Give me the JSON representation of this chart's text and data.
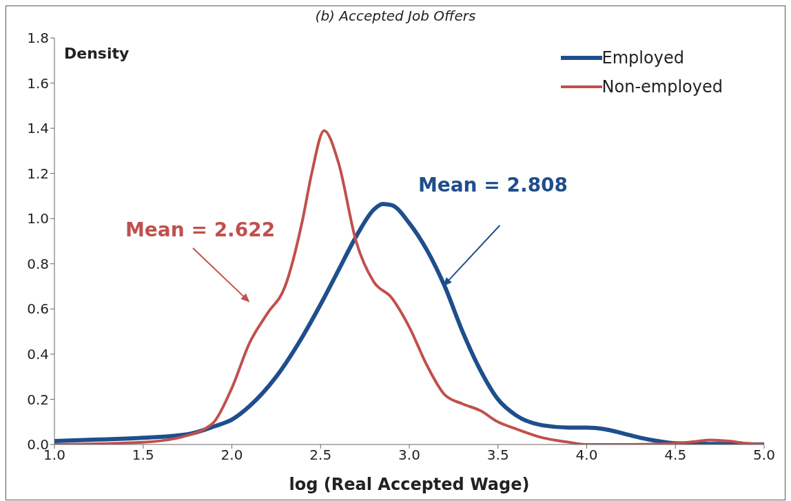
{
  "chart_data": {
    "type": "line",
    "title": "(b) Accepted Job Offers",
    "xlabel": "log (Real Accepted Wage)",
    "ylabel": "Density",
    "xlim": [
      1,
      5
    ],
    "xticks": [
      {
        "value": 1,
        "label": "1.0"
      },
      {
        "value": 1.5,
        "label": "1.5"
      },
      {
        "value": 2,
        "label": "2.0"
      },
      {
        "value": 2.5,
        "label": "2.5"
      },
      {
        "value": 3,
        "label": "3.0"
      },
      {
        "value": 3.5,
        "label": "3.5"
      },
      {
        "value": 4,
        "label": "4.0"
      },
      {
        "value": 4.5,
        "label": "4.5"
      },
      {
        "value": 5,
        "label": "5.0"
      }
    ],
    "ylim": [
      0,
      1.8
    ],
    "yticks": [
      {
        "value": 0,
        "label": "0.0"
      },
      {
        "value": 0.2,
        "label": "0.2"
      },
      {
        "value": 0.4,
        "label": "0.4"
      },
      {
        "value": 0.6,
        "label": "0.6"
      },
      {
        "value": 0.8,
        "label": "0.8"
      },
      {
        "value": 1,
        "label": "1.0"
      },
      {
        "value": 1.2,
        "label": "1.2"
      },
      {
        "value": 1.4,
        "label": "1.4"
      },
      {
        "value": 1.6,
        "label": "1.6"
      },
      {
        "value": 1.8,
        "label": "1.8"
      }
    ],
    "grid": false,
    "legend": "top right",
    "marker": "none",
    "line_style": "solid",
    "series": [
      {
        "name": "Employed",
        "color": "#1f4e8c",
        "x": [
          1,
          1.25,
          1.5,
          1.75,
          1.9,
          2,
          2.1,
          2.25,
          2.4,
          2.5,
          2.6,
          2.7,
          2.8,
          2.85,
          2.9,
          3,
          3.1,
          3.2,
          3.3,
          3.4,
          3.5,
          3.6,
          3.75,
          3.9,
          4,
          4.1,
          4.2,
          4.3,
          4.4,
          4.5,
          4.75,
          5
        ],
        "values": [
          0.015,
          0.022,
          0.03,
          0.045,
          0.08,
          0.11,
          0.17,
          0.3,
          0.48,
          0.62,
          0.77,
          0.92,
          1.04,
          1.065,
          1.06,
          0.98,
          0.86,
          0.7,
          0.5,
          0.33,
          0.2,
          0.13,
          0.085,
          0.075,
          0.075,
          0.068,
          0.05,
          0.03,
          0.015,
          0.005,
          0.002,
          0
        ]
      },
      {
        "name": "Non-employed",
        "color": "#c0504d",
        "x": [
          1,
          1.5,
          1.75,
          1.85,
          1.9,
          2,
          2.1,
          2.2,
          2.3,
          2.4,
          2.45,
          2.52,
          2.6,
          2.7,
          2.8,
          2.9,
          3,
          3.1,
          3.2,
          3.3,
          3.4,
          3.5,
          3.6,
          3.75,
          3.9,
          4,
          4.25,
          4.5,
          4.6,
          4.7,
          4.8,
          4.9,
          5
        ],
        "values": [
          0,
          0.01,
          0.04,
          0.07,
          0.1,
          0.25,
          0.45,
          0.58,
          0.7,
          1.0,
          1.2,
          1.39,
          1.25,
          0.9,
          0.72,
          0.65,
          0.52,
          0.35,
          0.22,
          0.18,
          0.15,
          0.1,
          0.07,
          0.03,
          0.01,
          0,
          0,
          0.005,
          0.012,
          0.02,
          0.015,
          0.005,
          0
        ]
      }
    ],
    "annotations": [
      "Mean = 2.622",
      "Mean = 2.808"
    ]
  }
}
